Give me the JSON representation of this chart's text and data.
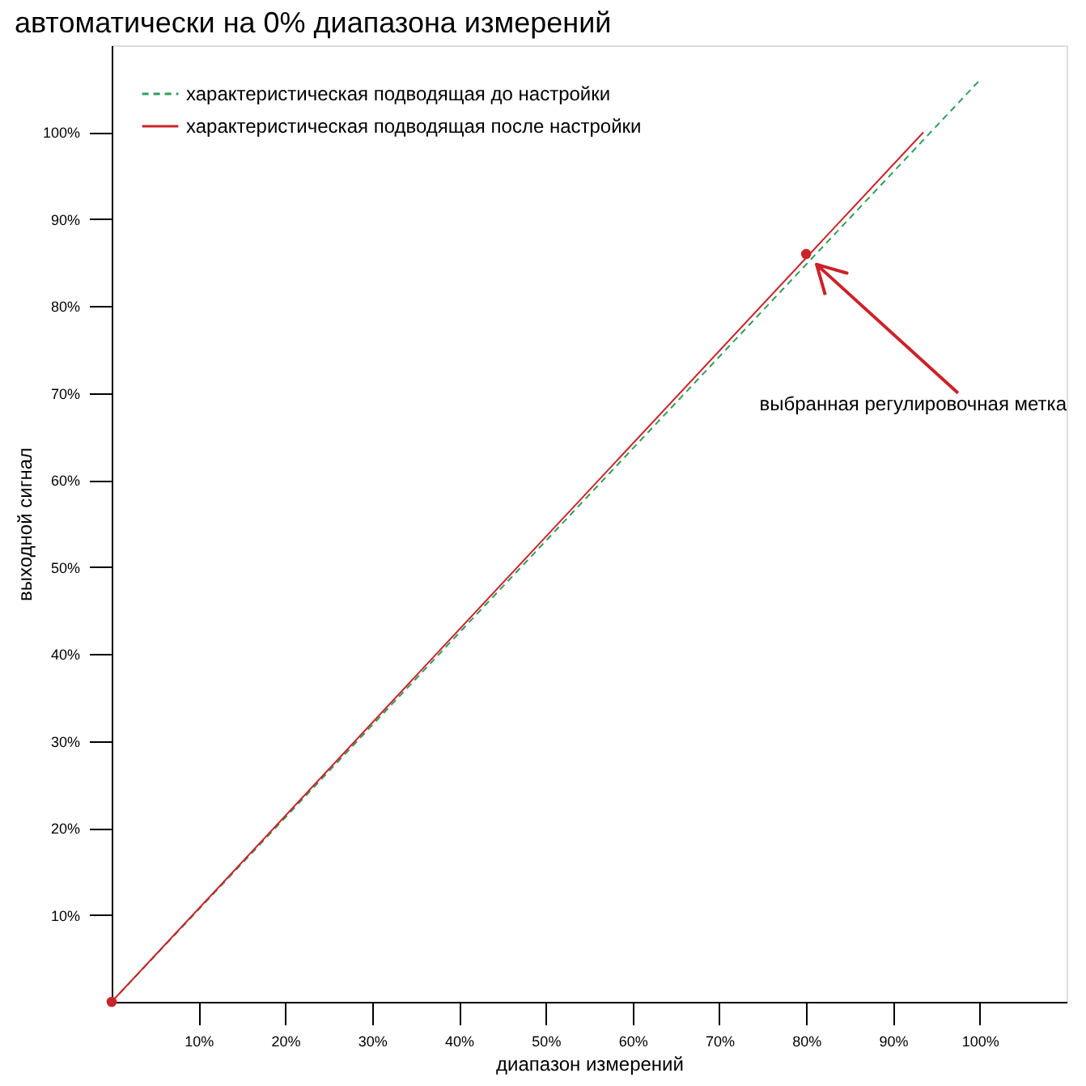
{
  "chart_data": {
    "type": "line",
    "title": "автоматически на 0% диапазона измерений",
    "xlabel": "диапазон измерений",
    "ylabel": "выходной сигнал",
    "xlim": [
      0,
      110
    ],
    "ylim": [
      0,
      110
    ],
    "xticks": [
      {
        "value": 10,
        "label": "10%"
      },
      {
        "value": 20,
        "label": "20%"
      },
      {
        "value": 30,
        "label": "30%"
      },
      {
        "value": 40,
        "label": "40%"
      },
      {
        "value": 50,
        "label": "50%"
      },
      {
        "value": 60,
        "label": "60%"
      },
      {
        "value": 70,
        "label": "70%"
      },
      {
        "value": 80,
        "label": "80%"
      },
      {
        "value": 90,
        "label": "90%"
      },
      {
        "value": 100,
        "label": "100%"
      }
    ],
    "yticks": [
      {
        "value": 10,
        "label": "10%"
      },
      {
        "value": 20,
        "label": "20%"
      },
      {
        "value": 30,
        "label": "30%"
      },
      {
        "value": 40,
        "label": "40%"
      },
      {
        "value": 50,
        "label": "50%"
      },
      {
        "value": 60,
        "label": "60%"
      },
      {
        "value": 70,
        "label": "70%"
      },
      {
        "value": 80,
        "label": "80%"
      },
      {
        "value": 90,
        "label": "90%"
      },
      {
        "value": 100,
        "label": "100%"
      }
    ],
    "grid": false,
    "legend": "top left",
    "series": [
      {
        "name": "характеристическая подводящая до настройки",
        "color": "#2e9e5a",
        "line_style": "dashed",
        "x": [
          0,
          100
        ],
        "values": [
          0,
          106
        ]
      },
      {
        "name": "характеристическая подводящая после настройки",
        "color": "#cc2229",
        "line_style": "solid",
        "x": [
          0,
          93.5
        ],
        "values": [
          0,
          100
        ]
      },
      {
        "type": "scatter",
        "color": "#cc2229",
        "marker": "circle",
        "x": [
          0,
          80
        ],
        "values": [
          0,
          86
        ]
      }
    ],
    "annotations": [
      "выбранная регулировочная метка"
    ]
  }
}
